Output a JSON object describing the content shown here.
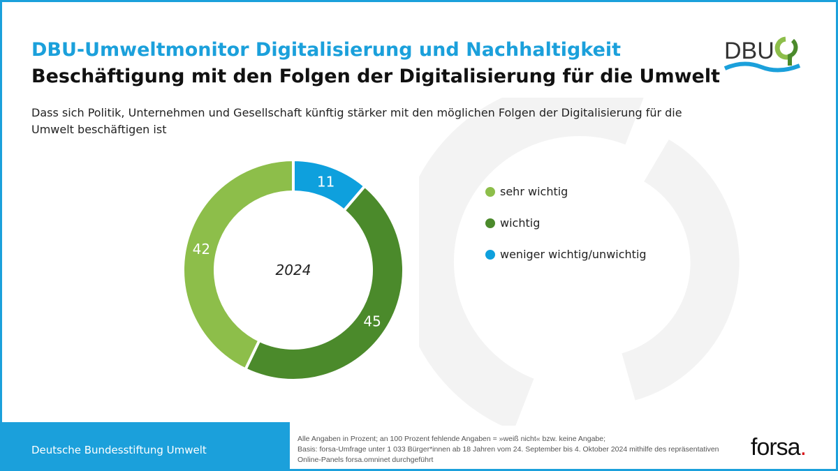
{
  "header": {
    "title": "DBU-Umweltmonitor Digitalisierung und Nachhaltigkeit",
    "subtitle": "Beschäftigung mit den Folgen der Digitalisierung für die Umwelt",
    "question": "Dass sich Politik, Unternehmen und Gesellschaft künftig stärker mit den möglichen Folgen der Digitalisierung für die Umwelt beschäftigen ist"
  },
  "logo": {
    "text": "DBU"
  },
  "chart_data": {
    "type": "pie",
    "variant": "donut",
    "center_label": "2024",
    "unit": "%",
    "slices": [
      {
        "label": "weniger wichtig/unwichtig",
        "value": 11,
        "color": "#0ea0dd"
      },
      {
        "label": "wichtig",
        "value": 45,
        "color": "#4b8a2b"
      },
      {
        "label": "sehr wichtig",
        "value": 42,
        "color": "#8dbe4a"
      }
    ],
    "legend_order": [
      "sehr wichtig",
      "wichtig",
      "weniger wichtig/unwichtig"
    ],
    "legend_colors": [
      "#8dbe4a",
      "#4b8a2b",
      "#0ea0dd"
    ],
    "legend_placement": "right"
  },
  "footer": {
    "org": "Deutsche Bundesstiftung Umwelt",
    "notes": [
      "Alle Angaben in Prozent; an 100 Prozent fehlende Angaben = »weiß nicht« bzw. keine Angabe;",
      "Basis: forsa-Umfrage unter 1 033 Bürger*innen ab 18 Jahren vom 24. September bis 4. Oktober 2024 mithilfe des repräsentativen",
      "Online-Panels forsa.omninet durchgeführt"
    ],
    "brand": "forsa",
    "brand_dot": "."
  },
  "colors": {
    "accent": "#1ba0db"
  }
}
